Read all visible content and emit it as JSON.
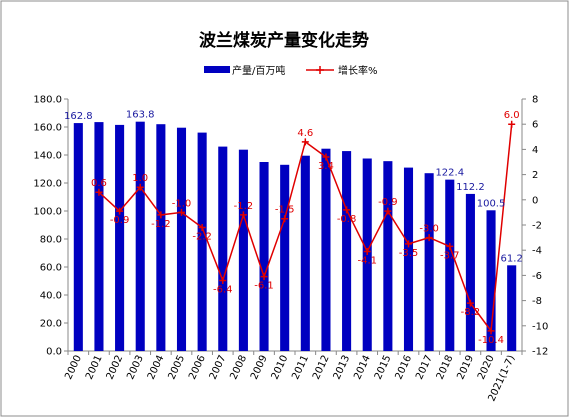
{
  "chart_data": {
    "type": "bar+line",
    "title": "波兰煤炭产量变化走势",
    "categories": [
      "2000",
      "2001",
      "2002",
      "2003",
      "2004",
      "2005",
      "2006",
      "2007",
      "2008",
      "2009",
      "2010",
      "2011",
      "2012",
      "2013",
      "2014",
      "2015",
      "2016",
      "2017",
      "2018",
      "2019",
      "2020",
      "2021(1-7)"
    ],
    "series": [
      {
        "name": "产量/百万吨",
        "type": "bar",
        "axis": "left",
        "color": "#0000c0",
        "values": [
          162.8,
          163.5,
          161.5,
          163.8,
          162.0,
          159.5,
          156.0,
          146.0,
          143.8,
          135.0,
          133.0,
          139.5,
          144.5,
          142.8,
          137.5,
          135.6,
          131.0,
          127.0,
          122.4,
          112.2,
          100.5,
          61.2
        ],
        "labels": [
          "162.8",
          "",
          "",
          "163.8",
          "",
          "",
          "",
          "",
          "",
          "",
          "",
          "",
          "",
          "",
          "",
          "",
          "",
          "",
          "122.4",
          "112.2",
          "100.5",
          "61.2"
        ]
      },
      {
        "name": "增长率%",
        "type": "line",
        "axis": "right",
        "color": "#e00000",
        "values": [
          null,
          0.6,
          -0.9,
          1.0,
          -1.2,
          -1.0,
          -2.2,
          -6.4,
          -1.2,
          -6.1,
          -1.5,
          4.6,
          3.4,
          -0.8,
          -4.1,
          -0.9,
          -3.5,
          -3.0,
          -3.7,
          -8.2,
          -10.4,
          6.0
        ],
        "labels": [
          "",
          "0.6",
          "-0.9",
          "1.0",
          "-1.2",
          "-1.0",
          "-2.2",
          "-6.4",
          "-1.2",
          "-6.1",
          "-1.5",
          "4.6",
          "3.4",
          "-0.8",
          "-4.1",
          "-0.9",
          "-3.5",
          "-3.0",
          "-3.7",
          "-8.2",
          "-10.4",
          "6.0"
        ]
      }
    ],
    "y_left": {
      "min": 0,
      "max": 180,
      "step": 20,
      "tick_labels": [
        "0.0",
        "20.0",
        "40.0",
        "60.0",
        "80.0",
        "100.0",
        "120.0",
        "140.0",
        "160.0",
        "180.0"
      ]
    },
    "y_right": {
      "min": -12,
      "max": 8,
      "step": 2,
      "tick_labels": [
        "-12",
        "-10",
        "-8",
        "-6",
        "-4",
        "-2",
        "0",
        "2",
        "4",
        "6",
        "8"
      ]
    },
    "legend_position": "top",
    "grid": false,
    "colors": {
      "bar": "#0000c0",
      "line": "#e00000",
      "bar_label": "#1a1aa0",
      "line_label": "#e00000"
    }
  }
}
